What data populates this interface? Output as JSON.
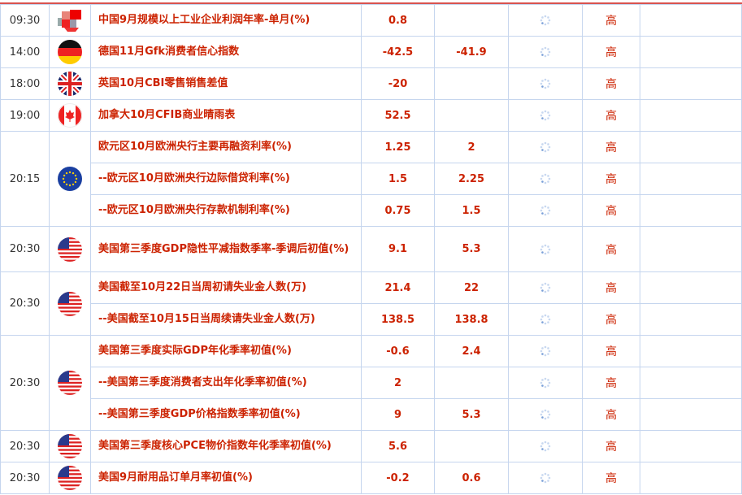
{
  "colors": {
    "text": "#cc2200",
    "border": "#c5d5ee",
    "top_line": "#d9534f"
  },
  "rows": [
    {
      "time": "09:30",
      "flag": "china-flag-icon",
      "events": [
        {
          "name": "中国9月规模以上工业企业利润年率-单月(%)",
          "prev": "0.8",
          "forecast": "",
          "importance": "高"
        }
      ]
    },
    {
      "time": "14:00",
      "flag": "germany-flag-icon",
      "events": [
        {
          "name": "德国11月Gfk消费者信心指数",
          "prev": "-42.5",
          "forecast": "-41.9",
          "importance": "高"
        }
      ]
    },
    {
      "time": "18:00",
      "flag": "uk-flag-icon",
      "events": [
        {
          "name": "英国10月CBI零售销售差值",
          "prev": "-20",
          "forecast": "",
          "importance": "高"
        }
      ]
    },
    {
      "time": "19:00",
      "flag": "canada-flag-icon",
      "events": [
        {
          "name": "加拿大10月CFIB商业晴雨表",
          "prev": "52.5",
          "forecast": "",
          "importance": "高"
        }
      ]
    },
    {
      "time": "20:15",
      "flag": "eu-flag-icon",
      "events": [
        {
          "name": "欧元区10月欧洲央行主要再融资利率(%)",
          "prev": "1.25",
          "forecast": "2",
          "importance": "高"
        },
        {
          "name": "--欧元区10月欧洲央行边际借贷利率(%)",
          "prev": "1.5",
          "forecast": "2.25",
          "importance": "高"
        },
        {
          "name": "--欧元区10月欧洲央行存款机制利率(%)",
          "prev": "0.75",
          "forecast": "1.5",
          "importance": "高"
        }
      ]
    },
    {
      "time": "20:30",
      "flag": "us-flag-icon",
      "events": [
        {
          "name": "美国第三季度GDP隐性平减指数季率-季调后初值(%)",
          "prev": "9.1",
          "forecast": "5.3",
          "importance": "高",
          "tall": true
        }
      ]
    },
    {
      "time": "20:30",
      "flag": "us-flag-icon",
      "events": [
        {
          "name": "美国截至10月22日当周初请失业金人数(万)",
          "prev": "21.4",
          "forecast": "22",
          "importance": "高"
        },
        {
          "name": "--美国截至10月15日当周续请失业金人数(万)",
          "prev": "138.5",
          "forecast": "138.8",
          "importance": "高"
        }
      ]
    },
    {
      "time": "20:30",
      "flag": "us-flag-icon",
      "events": [
        {
          "name": "美国第三季度实际GDP年化季率初值(%)",
          "prev": "-0.6",
          "forecast": "2.4",
          "importance": "高"
        },
        {
          "name": "--美国第三季度消费者支出年化季率初值(%)",
          "prev": "2",
          "forecast": "",
          "importance": "高"
        },
        {
          "name": "--美国第三季度GDP价格指数季率初值(%)",
          "prev": "9",
          "forecast": "5.3",
          "importance": "高"
        }
      ]
    },
    {
      "time": "20:30",
      "flag": "us-flag-icon",
      "events": [
        {
          "name": "美国第三季度核心PCE物价指数年化季率初值(%)",
          "prev": "5.6",
          "forecast": "",
          "importance": "高"
        }
      ]
    },
    {
      "time": "20:30",
      "flag": "us-flag-icon",
      "events": [
        {
          "name": "美国9月耐用品订单月率初值(%)",
          "prev": "-0.2",
          "forecast": "0.6",
          "importance": "高"
        }
      ]
    }
  ]
}
